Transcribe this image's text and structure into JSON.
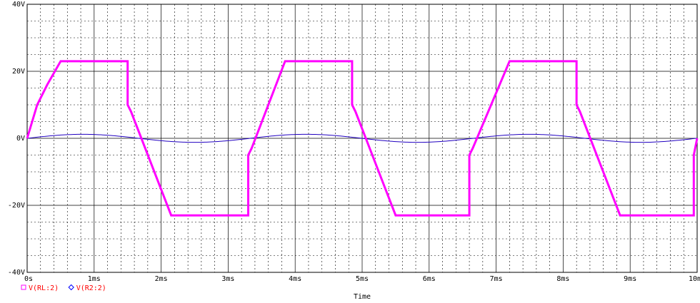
{
  "chart_data": {
    "type": "line",
    "xlabel": "Time",
    "ylabel": "",
    "xlim": [
      0,
      10
    ],
    "ylim": [
      -40,
      40
    ],
    "x_unit": "ms",
    "y_unit": "V",
    "x_ticks": [
      0,
      1,
      2,
      3,
      4,
      5,
      6,
      7,
      8,
      9,
      10
    ],
    "x_tick_labels": [
      "0s",
      "1ms",
      "2ms",
      "3ms",
      "4ms",
      "5ms",
      "6ms",
      "7ms",
      "8ms",
      "9ms",
      "10ms"
    ],
    "y_ticks": [
      -40,
      -20,
      0,
      20,
      40
    ],
    "y_tick_labels": [
      "-40V",
      "-20V",
      "0V",
      "20V",
      "40V"
    ],
    "grid": true,
    "legend_position": "bottom-left",
    "series": [
      {
        "name": "V(RL:2)",
        "color": "#ff00ff",
        "marker": "square",
        "x": [
          0,
          0.15,
          0.3,
          0.5,
          1.5,
          1.5,
          1.55,
          2.15,
          3.3,
          3.3,
          3.35,
          3.85,
          4.85,
          4.85,
          4.9,
          5.5,
          6.6,
          6.6,
          6.65,
          7.2,
          8.2,
          8.2,
          8.25,
          8.85,
          9.95,
          9.95,
          10
        ],
        "y": [
          0,
          10,
          16,
          23,
          23,
          10,
          8,
          -23,
          -23,
          -5,
          -3,
          23,
          23,
          10,
          8,
          -23,
          -23,
          -5,
          -3,
          23,
          23,
          10,
          8,
          -23,
          -23,
          -5,
          0
        ]
      },
      {
        "name": "V(R2:2)",
        "color": "#2000c0",
        "marker": "diamond",
        "amplitude": 1.2,
        "period_ms": 3.33,
        "x": [],
        "y": []
      }
    ],
    "legend": [
      {
        "name": "V(RL:2)",
        "marker_color": "#ff00ff",
        "text_color": "#ff0000",
        "marker": "square"
      },
      {
        "name": "V(R2:2)",
        "marker_color": "#0000ff",
        "text_color": "#ff0000",
        "marker": "diamond"
      }
    ]
  }
}
